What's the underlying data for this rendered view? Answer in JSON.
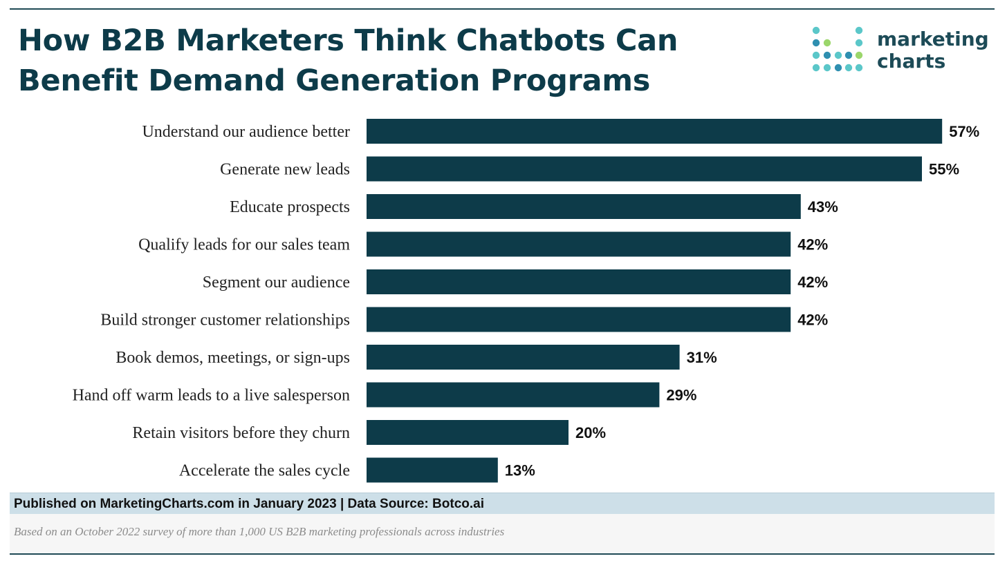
{
  "title": {
    "line1": "How B2B Marketers Think Chatbots Can",
    "line2": "Benefit Demand Generation Programs"
  },
  "logo": {
    "word1": "marketing",
    "word2": "charts",
    "dot_colors": [
      "#5bc7c9",
      "#2f8fb0",
      "#9bd66b"
    ]
  },
  "colors": {
    "bar": "#0d3b49",
    "title": "#0d3b49",
    "source_band": "#cddfe8"
  },
  "chart_data": {
    "type": "bar",
    "orientation": "horizontal",
    "title": "How B2B Marketers Think Chatbots Can Benefit Demand Generation Programs",
    "xlabel": "",
    "ylabel": "",
    "xlim": [
      0,
      60
    ],
    "value_suffix": "%",
    "categories": [
      "Understand our audience better",
      "Generate new leads",
      "Educate prospects",
      "Qualify leads for our sales team",
      "Segment our audience",
      "Build stronger customer relationships",
      "Book demos, meetings, or sign-ups",
      "Hand off warm leads to a live salesperson",
      "Retain visitors before they churn",
      "Accelerate the sales cycle"
    ],
    "values": [
      57,
      55,
      43,
      42,
      42,
      42,
      31,
      29,
      20,
      13
    ]
  },
  "footer": {
    "source": "Published on MarketingCharts.com in January 2023 | Data Source: Botco.ai",
    "note": "Based on an October 2022 survey of more than 1,000 US B2B marketing professionals across industries"
  }
}
